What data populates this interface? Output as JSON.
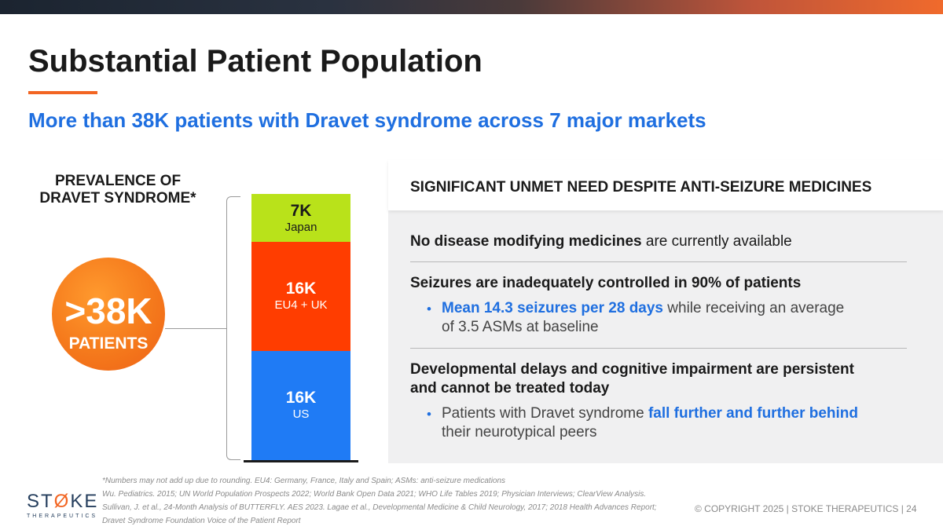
{
  "header": {
    "title": "Substantial Patient Population",
    "subtitle": "More than 38K patients with Dravet syndrome across 7 major markets"
  },
  "prevalence": {
    "heading_line1": "PREVALENCE OF",
    "heading_line2": "DRAVET SYNDROME*",
    "total_value": ">38K",
    "total_label": "PATIENTS"
  },
  "chart_data": {
    "type": "bar",
    "stacked": true,
    "categories": [
      "US",
      "EU4 + UK",
      "Japan"
    ],
    "value_labels": [
      "16K",
      "16K",
      "7K"
    ],
    "values": [
      16,
      16,
      7
    ],
    "colors": [
      "#1f7bf5",
      "#ff3d00",
      "#b9e21a"
    ],
    "title": "",
    "xlabel": "",
    "ylabel": ""
  },
  "panel": {
    "heading": "SIGNIFICANT UNMET NEED DESPITE ANTI-SEIZURE MEDICINES",
    "item1_bold": "No disease modifying medicines",
    "item1_rest": " are currently available",
    "item2": "Seizures are inadequately controlled in 90% of patients",
    "item2_bullet_bold": "Mean 14.3 seizures per 28 days",
    "item2_bullet_rest1": " while receiving an average",
    "item2_bullet_rest2": "of 3.5 ASMs at baseline",
    "item3_line1": "Developmental delays and cognitive impairment are persistent",
    "item3_line2": "and cannot be treated today",
    "item3_bullet_rest1": "Patients with Dravet syndrome ",
    "item3_bullet_bold": "fall further and further behind",
    "item3_bullet_rest2": "their neurotypical peers"
  },
  "footer": {
    "logo_left": "ST",
    "logo_accent": "Ø",
    "logo_right": "KE",
    "logo_sub": "THERAPEUTICS",
    "footnote1": "*Numbers may not add up due to rounding. EU4: Germany, France, Italy and Spain; ASMs: anti-seizure medications",
    "footnote2": "Wu. Pediatrics. 2015; UN World Population Prospects 2022; World Bank Open Data 2021; WHO Life Tables 2019; Physician Interviews; ClearView Analysis.",
    "footnote3": "Sullivan, J. et al., 24-Month Analysis of BUTTERFLY. AES 2023. Lagae et al., Developmental Medicine & Child Neurology, 2017; 2018 Health Advances Report;",
    "footnote4": "Dravet Syndrome Foundation Voice of the Patient Report",
    "copyright": "© COPYRIGHT 2025   |  STOKE THERAPEUTICS  |  24"
  }
}
